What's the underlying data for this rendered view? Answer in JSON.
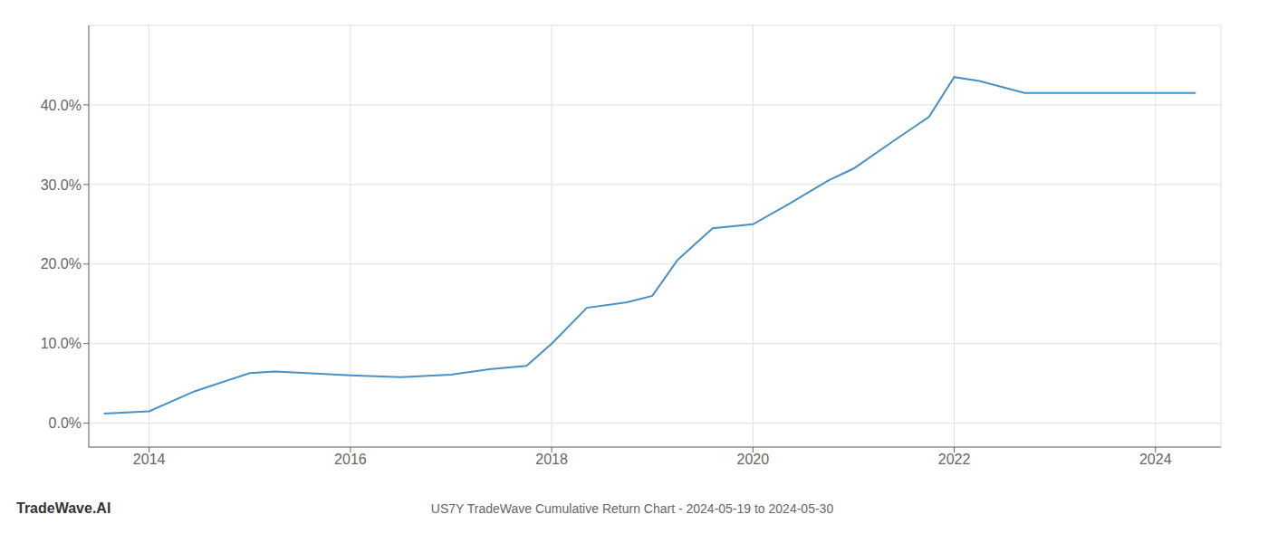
{
  "chart_data": {
    "type": "line",
    "title": "US7Y TradeWave Cumulative Return Chart - 2024-05-19 to 2024-05-30",
    "annotations": [
      "TradeWave.AI"
    ],
    "x": [
      2013.55,
      2014.0,
      2014.45,
      2015.0,
      2015.25,
      2015.7,
      2016.0,
      2016.5,
      2017.0,
      2017.4,
      2017.75,
      2018.0,
      2018.35,
      2018.75,
      2019.0,
      2019.25,
      2019.6,
      2020.0,
      2020.35,
      2020.75,
      2021.0,
      2021.4,
      2021.75,
      2022.0,
      2022.25,
      2022.7,
      2023.0,
      2023.5,
      2024.0,
      2024.4
    ],
    "values": [
      1.2,
      1.5,
      4.0,
      6.3,
      6.5,
      6.2,
      6.0,
      5.8,
      6.1,
      6.8,
      7.2,
      10.0,
      14.5,
      15.2,
      16.0,
      20.5,
      24.5,
      25.0,
      27.5,
      30.5,
      32.0,
      35.5,
      38.5,
      43.5,
      43.0,
      41.5,
      41.5,
      41.5,
      41.5,
      41.5
    ],
    "color": "#4a90c4",
    "xlim": [
      2013.4,
      2024.65
    ],
    "ylim": [
      -3,
      50
    ],
    "xticks": [
      2014,
      2016,
      2018,
      2020,
      2022,
      2024
    ],
    "yticks": [
      {
        "value": 0,
        "label": "0.0%"
      },
      {
        "value": 10,
        "label": "10.0%"
      },
      {
        "value": 20,
        "label": "20.0%"
      },
      {
        "value": 30,
        "label": "30.0%"
      },
      {
        "value": 40,
        "label": "40.0%"
      }
    ],
    "grid": true
  }
}
